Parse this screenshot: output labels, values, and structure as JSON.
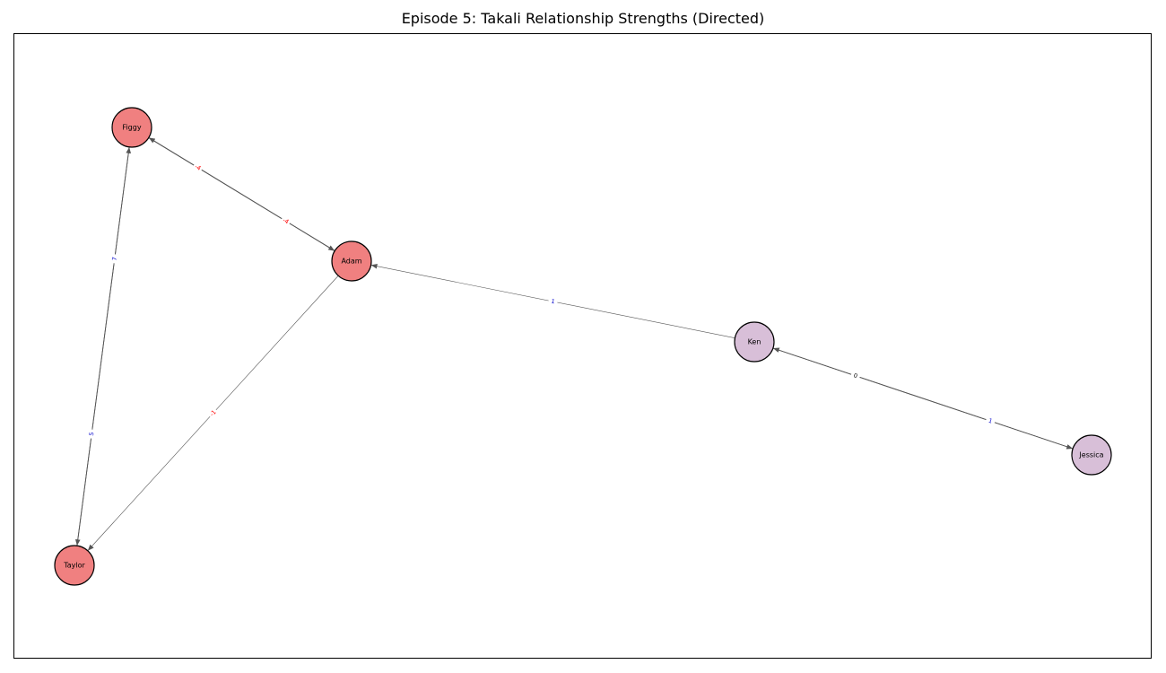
{
  "title": "Episode 5: Takali Relationship Strengths (Directed)",
  "colors": {
    "tribe_a": "#f08080",
    "tribe_b": "#d8bfd8",
    "positive_label": "#0000cc",
    "negative_label": "#ff0000",
    "neutral_label": "#000000",
    "edge": "#555555"
  },
  "nodes": [
    {
      "id": "Figgy",
      "label": "Figgy",
      "group": "tribe_a"
    },
    {
      "id": "Adam",
      "label": "Adam",
      "group": "tribe_a"
    },
    {
      "id": "Taylor",
      "label": "Taylor",
      "group": "tribe_a"
    },
    {
      "id": "Ken",
      "label": "Ken",
      "group": "tribe_b"
    },
    {
      "id": "Jessica",
      "label": "Jessica",
      "group": "tribe_b"
    }
  ],
  "edges": [
    {
      "source": "Adam",
      "target": "Figgy",
      "weight": "-4",
      "sign": "negative"
    },
    {
      "source": "Figgy",
      "target": "Adam",
      "weight": "-4",
      "sign": "negative"
    },
    {
      "source": "Taylor",
      "target": "Figgy",
      "weight": "7",
      "sign": "positive"
    },
    {
      "source": "Figgy",
      "target": "Taylor",
      "weight": "5",
      "sign": "positive"
    },
    {
      "source": "Adam",
      "target": "Taylor",
      "weight": "-1",
      "sign": "negative"
    },
    {
      "source": "Ken",
      "target": "Adam",
      "weight": "1",
      "sign": "positive"
    },
    {
      "source": "Jessica",
      "target": "Ken",
      "weight": "0",
      "sign": "neutral"
    },
    {
      "source": "Ken",
      "target": "Jessica",
      "weight": "1",
      "sign": "positive"
    }
  ]
}
